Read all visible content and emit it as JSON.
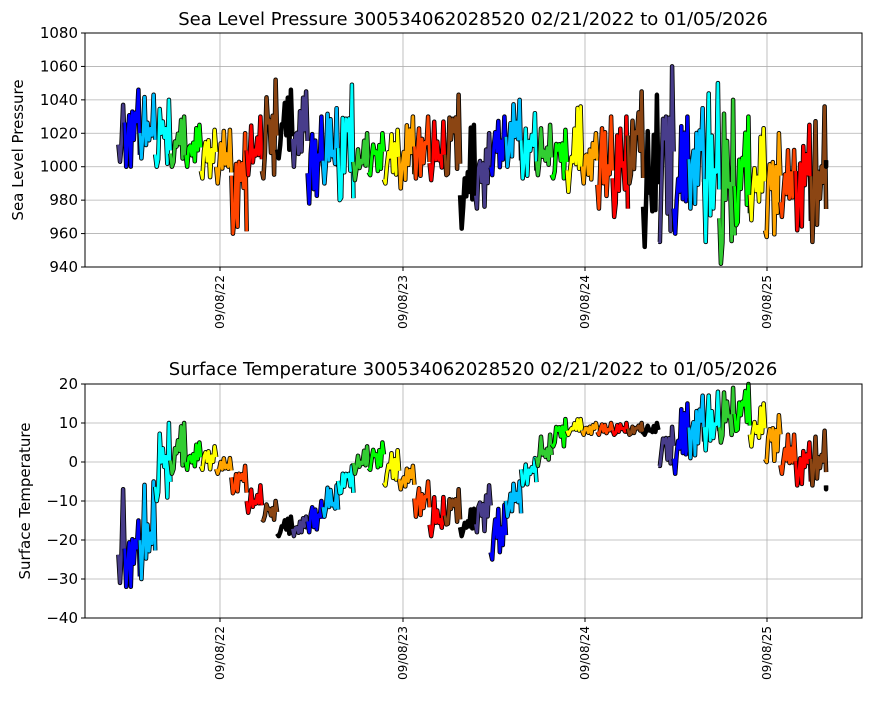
{
  "month_colors": [
    "#483d8b",
    "#0000ff",
    "#00bfff",
    "#00ffff",
    "#32cd32",
    "#00ff00",
    "#ffff00",
    "#ffa500",
    "#ff4500",
    "#ff0000",
    "#8b4513",
    "#000000"
  ],
  "chart_data": [
    {
      "type": "scatter",
      "title": "Sea Level Pressure 300534062028520  02/21/2022 to 01/05/2026",
      "xlabel": "",
      "ylabel": "Sea Level Pressure",
      "ylim": [
        940,
        1080
      ],
      "yticks": [
        "940",
        "960",
        "980",
        "1000",
        "1020",
        "1040",
        "1060",
        "1080"
      ],
      "xticks": [
        "09/08/22",
        "09/08/23",
        "09/08/24",
        "09/08/25"
      ],
      "grid": true,
      "start_month": "2022-02",
      "monthly_range": [
        [
          1003,
          1037
        ],
        [
          1000,
          1046
        ],
        [
          1005,
          1043
        ],
        [
          1000,
          1040
        ],
        [
          1000,
          1030
        ],
        [
          1000,
          1025
        ],
        [
          993,
          1022
        ],
        [
          990,
          1022
        ],
        [
          960,
          1020
        ],
        [
          995,
          1030
        ],
        [
          993,
          1052
        ],
        [
          1005,
          1046
        ],
        [
          1000,
          1045
        ],
        [
          978,
          1030
        ],
        [
          990,
          1035
        ],
        [
          980,
          1049
        ],
        [
          992,
          1020
        ],
        [
          995,
          1020
        ],
        [
          990,
          1022
        ],
        [
          987,
          1030
        ],
        [
          993,
          1030
        ],
        [
          992,
          1027
        ],
        [
          995,
          1043
        ],
        [
          963,
          1025
        ],
        [
          975,
          1020
        ],
        [
          995,
          1030
        ],
        [
          1000,
          1040
        ],
        [
          993,
          1032
        ],
        [
          995,
          1025
        ],
        [
          993,
          1022
        ],
        [
          985,
          1036
        ],
        [
          990,
          1020
        ],
        [
          975,
          1030
        ],
        [
          970,
          1030
        ],
        [
          990,
          1045
        ],
        [
          952,
          1043
        ],
        [
          955,
          1060
        ],
        [
          960,
          1030
        ],
        [
          975,
          1035
        ],
        [
          955,
          1050
        ],
        [
          942,
          1040
        ],
        [
          965,
          1030
        ],
        [
          968,
          1023
        ],
        [
          958,
          1020
        ],
        [
          970,
          1010
        ],
        [
          962,
          1025
        ],
        [
          955,
          1036
        ],
        [
          1000,
          1020
        ]
      ]
    },
    {
      "type": "scatter",
      "title": "Surface Temperature 300534062028520  02/21/2022 to 01/05/2026",
      "xlabel": "",
      "ylabel": "Surface Temperature",
      "ylim": [
        -40,
        20
      ],
      "yticks": [
        "−40",
        "−30",
        "−20",
        "−10",
        "0",
        "10",
        "20"
      ],
      "xticks": [
        "09/08/22",
        "09/08/23",
        "09/08/24",
        "09/08/25"
      ],
      "grid": true,
      "start_month": "2022-02",
      "monthly_range": [
        [
          -31,
          -7
        ],
        [
          -32,
          -15
        ],
        [
          -30,
          -5
        ],
        [
          -10,
          10
        ],
        [
          -3,
          10
        ],
        [
          -2,
          5
        ],
        [
          -2,
          4
        ],
        [
          -3,
          1
        ],
        [
          -8,
          -1
        ],
        [
          -13,
          -6
        ],
        [
          -15,
          -10
        ],
        [
          -19,
          -14
        ],
        [
          -19,
          -14
        ],
        [
          -18,
          -10
        ],
        [
          -14,
          -6
        ],
        [
          -8,
          -1
        ],
        [
          -3,
          4
        ],
        [
          -2,
          5
        ],
        [
          -6,
          3
        ],
        [
          -7,
          -1
        ],
        [
          -14,
          -5
        ],
        [
          -19,
          -9
        ],
        [
          -16,
          -7
        ],
        [
          -19,
          -12
        ],
        [
          -18,
          -6
        ],
        [
          -25,
          -11
        ],
        [
          -14,
          -5
        ],
        [
          -6,
          1
        ],
        [
          -1,
          7
        ],
        [
          4,
          11
        ],
        [
          7,
          11
        ],
        [
          7,
          10
        ],
        [
          7,
          10
        ],
        [
          7,
          10
        ],
        [
          7,
          10
        ],
        [
          7,
          10
        ],
        [
          -1,
          9
        ],
        [
          -3,
          15
        ],
        [
          1,
          17
        ],
        [
          3,
          18
        ],
        [
          5,
          19
        ],
        [
          8,
          20
        ],
        [
          4,
          15
        ],
        [
          0,
          12
        ],
        [
          -3,
          7
        ],
        [
          -6,
          5
        ],
        [
          -6,
          8
        ],
        [
          -7,
          -2
        ]
      ]
    }
  ]
}
